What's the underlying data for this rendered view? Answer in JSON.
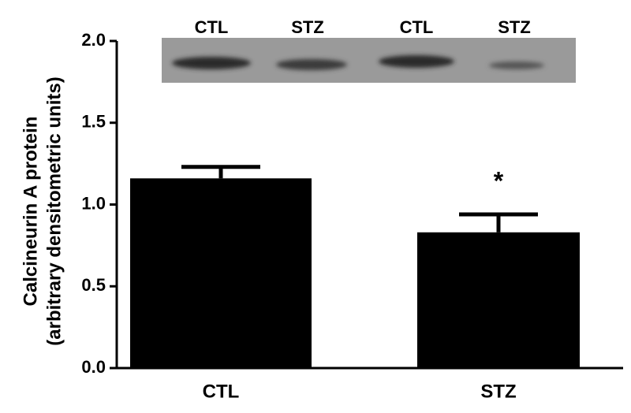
{
  "chart_data": {
    "type": "bar",
    "y_label": [
      "Calcineurin A protein",
      "(arbitrary densitometric units)"
    ],
    "categories": [
      "CTL",
      "STZ"
    ],
    "values": [
      1.16,
      0.83
    ],
    "errors": [
      0.07,
      0.11
    ],
    "color": "#000000",
    "ylim": [
      0,
      2.0
    ],
    "yticks": [
      {
        "value": 0,
        "label": "0.0"
      },
      {
        "value": 0.5,
        "label": "0.5"
      },
      {
        "value": 1.0,
        "label": "1.0"
      },
      {
        "value": 1.5,
        "label": "1.5"
      },
      {
        "value": 2.0,
        "label": "2.0"
      }
    ],
    "annotation": "*",
    "blot_labels": [
      "CTL",
      "STZ",
      "CTL",
      "STZ"
    ]
  }
}
